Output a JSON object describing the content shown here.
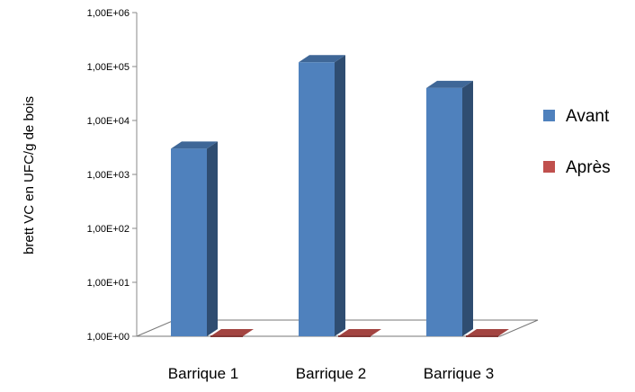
{
  "chart_data": {
    "type": "bar",
    "title": "",
    "xlabel": "",
    "ylabel": "brett VC en UFC/g de bois",
    "y_scale": "log10",
    "ylim": [
      1,
      1000000
    ],
    "y_tick_values": [
      1,
      10,
      100,
      1000,
      10000,
      100000,
      1000000
    ],
    "y_tick_labels": [
      "1,00E+00",
      "1,00E+01",
      "1,00E+02",
      "1,00E+03",
      "1,00E+04",
      "1,00E+05",
      "1,00E+06"
    ],
    "categories": [
      "Barrique 1",
      "Barrique 2",
      "Barrique 3"
    ],
    "series": [
      {
        "name": "Avant",
        "color": "#4F81BD",
        "values": [
          3000,
          120000,
          40000
        ]
      },
      {
        "name": "Après",
        "color": "#C0504D",
        "values": [
          1,
          1,
          1
        ]
      }
    ],
    "legend_position": "right",
    "grid": false,
    "style": "3d-column"
  }
}
